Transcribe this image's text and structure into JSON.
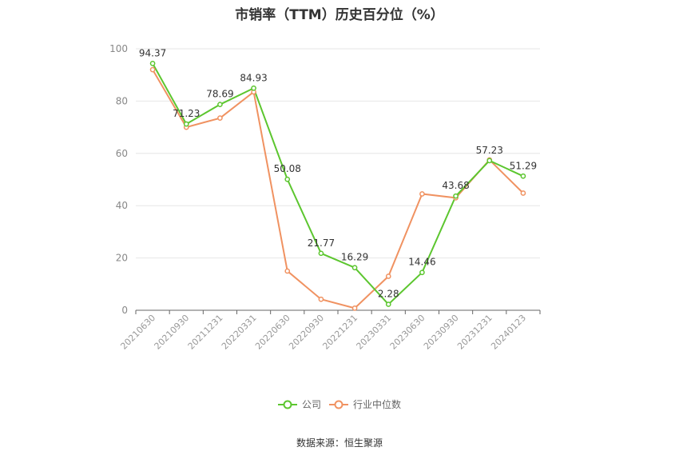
{
  "chart_data": {
    "type": "line",
    "title": "市销率（TTM）历史百分位（%）",
    "categories": [
      "20210630",
      "20210930",
      "20211231",
      "20220331",
      "20220630",
      "20220930",
      "20221231",
      "20230331",
      "20230630",
      "20230930",
      "20231231",
      "20240123"
    ],
    "ylim": [
      0,
      100
    ],
    "yticks": [
      0,
      20,
      40,
      60,
      80,
      100
    ],
    "grid": true,
    "legend_position": "bottom",
    "series": [
      {
        "name": "公司",
        "color": "#5cc62f",
        "values": [
          94.37,
          71.23,
          78.69,
          84.93,
          50.08,
          21.77,
          16.29,
          2.28,
          14.46,
          43.68,
          57.23,
          51.29
        ],
        "labels": [
          "94.37",
          "71.23",
          "78.69",
          "84.93",
          "50.08",
          "21.77",
          "16.29",
          "2.28",
          "14.46",
          "43.68",
          "57.23",
          "51.29"
        ]
      },
      {
        "name": "行业中位数",
        "color": "#f09261",
        "values": [
          92,
          70,
          73.5,
          83.5,
          15,
          4.2,
          0.8,
          13,
          44.5,
          43,
          57.5,
          44.8
        ]
      }
    ]
  },
  "source_text": "数据来源：恒生聚源"
}
